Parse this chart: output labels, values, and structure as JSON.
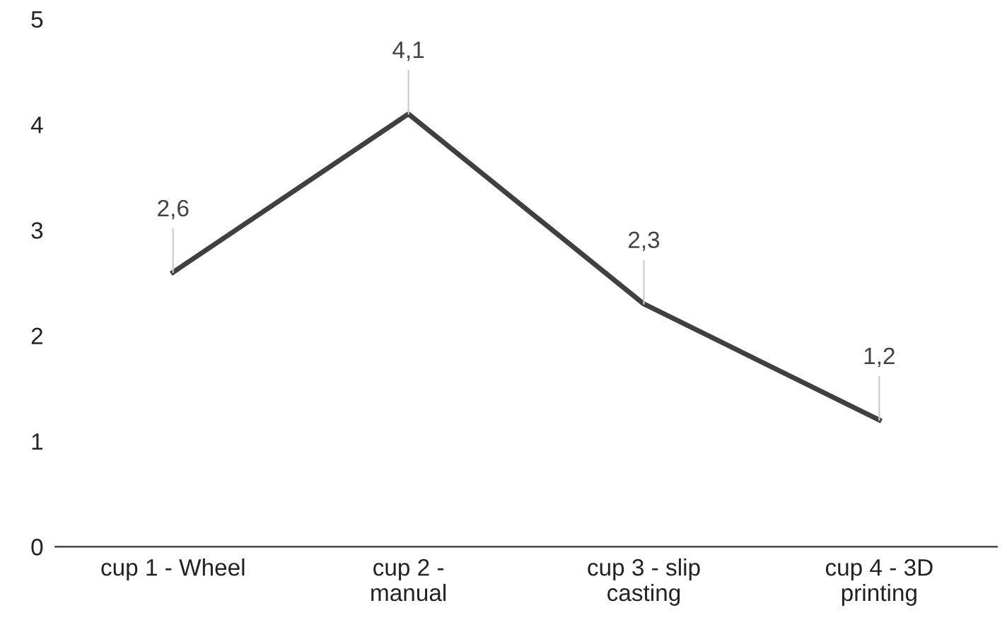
{
  "chart_data": {
    "type": "line",
    "categories": [
      "cup 1 - Wheel",
      "cup 2 -\nmanual",
      "cup 3 - slip\ncasting",
      "cup 4 - 3D\nprinting"
    ],
    "series": [
      {
        "color": "#404040",
        "values": [
          2.6,
          4.1,
          2.3,
          1.2
        ],
        "value_labels": [
          "2,6",
          "4,1",
          "2,3",
          "1,2"
        ]
      }
    ],
    "ylim": [
      0,
      5
    ],
    "yticks": [
      0,
      1,
      2,
      3,
      4,
      5
    ],
    "grid": false,
    "marker": "none",
    "line_style": "solid"
  }
}
